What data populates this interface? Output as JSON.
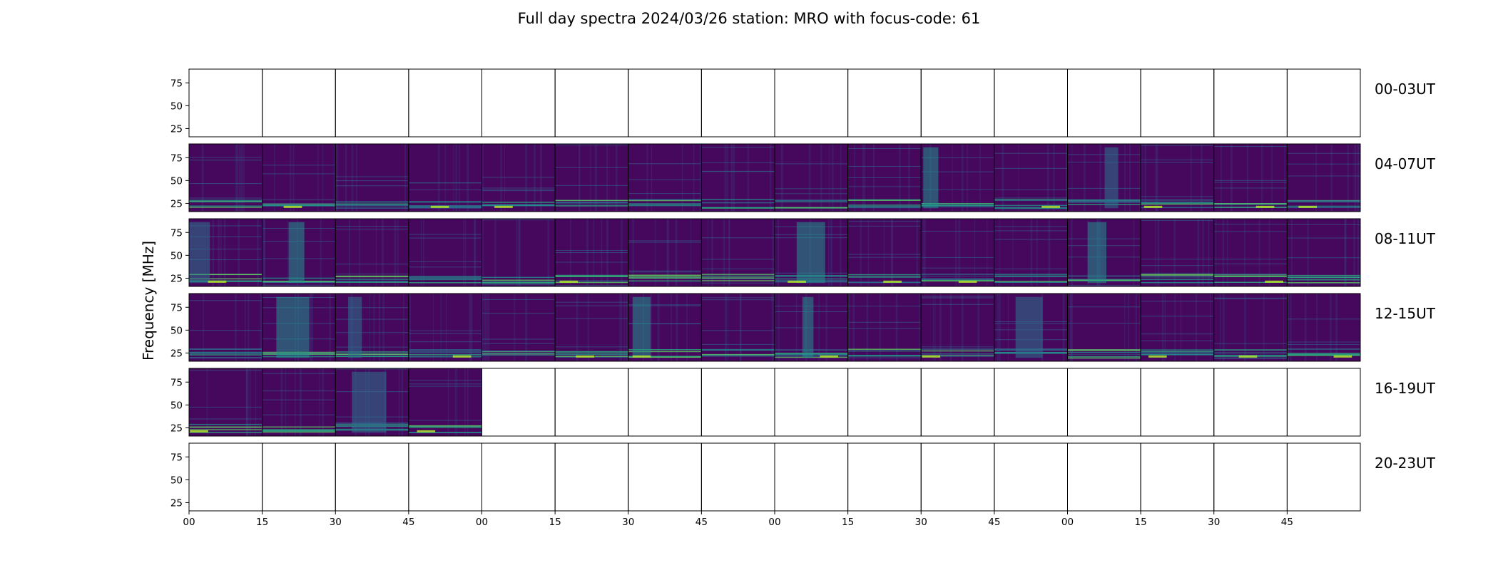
{
  "chart_data": {
    "type": "heatmap",
    "title": "Full day spectra 2024/03/26 station: MRO with focus-code: 61",
    "ylabel": "Frequency [MHz]",
    "xlabel": "",
    "y_ticks": [
      25,
      50,
      75
    ],
    "ylim": [
      16,
      90
    ],
    "x_tick_labels": [
      "00",
      "15",
      "30",
      "45",
      "00",
      "15",
      "30",
      "45",
      "00",
      "15",
      "30",
      "45",
      "00",
      "15",
      "30",
      "45"
    ],
    "panels_per_row": 16,
    "panel_minutes": 15,
    "colormap": "viridis",
    "rows": [
      {
        "label": "00-03UT",
        "panels": [
          false,
          false,
          false,
          false,
          false,
          false,
          false,
          false,
          false,
          false,
          false,
          false,
          false,
          false,
          false,
          false
        ]
      },
      {
        "label": "04-07UT",
        "panels": [
          true,
          true,
          true,
          true,
          true,
          true,
          true,
          true,
          true,
          true,
          true,
          true,
          true,
          true,
          true,
          true
        ]
      },
      {
        "label": "08-11UT",
        "panels": [
          true,
          true,
          true,
          true,
          true,
          true,
          true,
          true,
          true,
          true,
          true,
          true,
          true,
          true,
          true,
          true
        ]
      },
      {
        "label": "12-15UT",
        "panels": [
          true,
          true,
          true,
          true,
          true,
          true,
          true,
          true,
          true,
          true,
          true,
          true,
          true,
          true,
          true,
          true
        ]
      },
      {
        "label": "16-19UT",
        "panels": [
          true,
          true,
          true,
          true,
          false,
          false,
          false,
          false,
          false,
          false,
          false,
          false,
          false,
          false,
          false,
          false
        ]
      },
      {
        "label": "20-23UT",
        "panels": [
          false,
          false,
          false,
          false,
          false,
          false,
          false,
          false,
          false,
          false,
          false,
          false,
          false,
          false,
          false,
          false
        ]
      }
    ],
    "grid": false,
    "legend": "none"
  }
}
